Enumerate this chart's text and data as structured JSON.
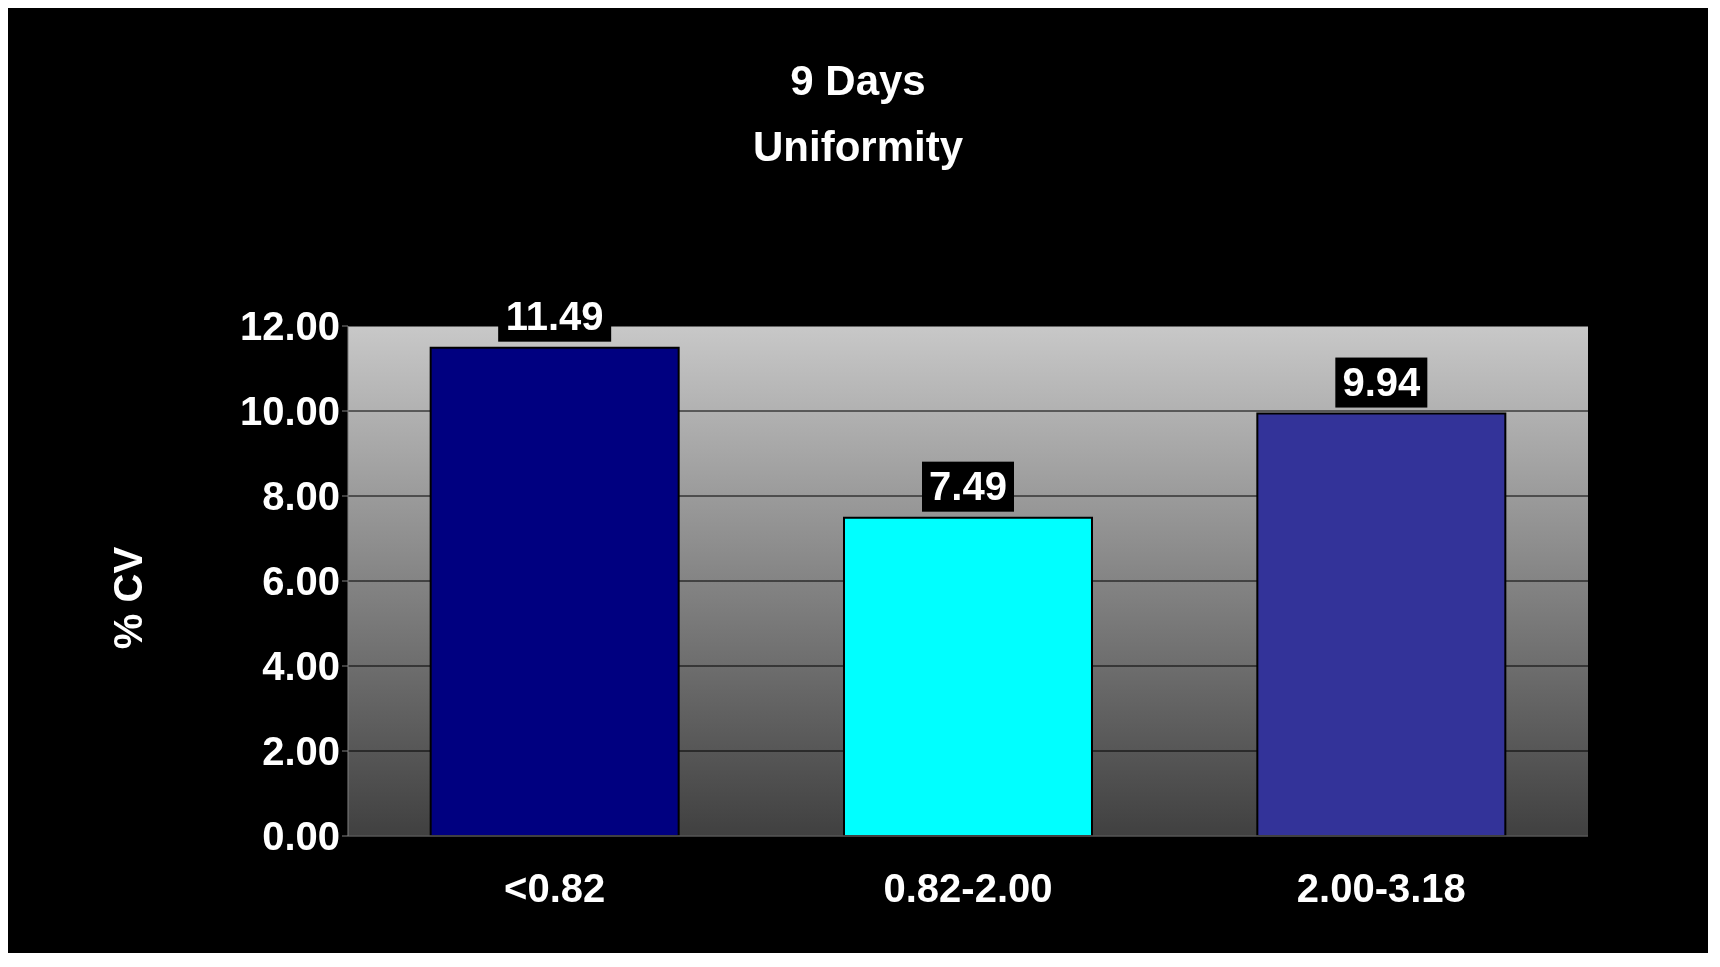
{
  "chart_data": {
    "type": "bar",
    "title": "9 Days",
    "subtitle": "Uniformity",
    "ylabel": "% CV",
    "categories": [
      "<0.82",
      "0.82-2.00",
      "2.00-3.18"
    ],
    "values": [
      11.49,
      7.49,
      9.94
    ],
    "colors": [
      "#000080",
      "#00ffff",
      "#333399"
    ],
    "ylim": [
      0,
      12
    ],
    "yticks": [
      {
        "value": 0,
        "label": "0.00"
      },
      {
        "value": 2,
        "label": "2.00"
      },
      {
        "value": 4,
        "label": "4.00"
      },
      {
        "value": 6,
        "label": "6.00"
      },
      {
        "value": 8,
        "label": "8.00"
      },
      {
        "value": 10,
        "label": "10.00"
      },
      {
        "value": 12,
        "label": "12.00"
      }
    ],
    "grid": "y",
    "data_labels": true
  }
}
